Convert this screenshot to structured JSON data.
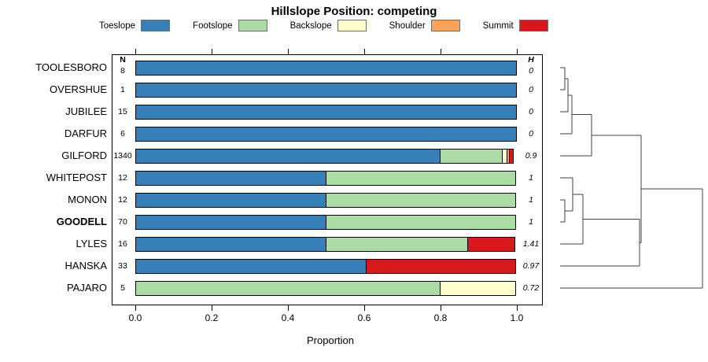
{
  "colors": {
    "Toeslope": "#3580b8",
    "Footslope": "#abdca4",
    "Backslope": "#ffffc9",
    "Shoulder": "#fba25c",
    "Summit": "#d7191c",
    "dendrogram_line": "#404040",
    "bar_border": "#000000"
  },
  "chart_data": {
    "type": "bar",
    "stacked": true,
    "orientation": "horizontal",
    "title": "Hillslope Position: competing",
    "xlabel": "Proportion",
    "xlim": [
      0.0,
      1.0
    ],
    "x_ticks": [
      "0.0",
      "0.2",
      "0.4",
      "0.6",
      "0.8",
      "1.0"
    ],
    "grid": false,
    "legend_position": "top",
    "legend": [
      "Toeslope",
      "Footslope",
      "Backslope",
      "Shoulder",
      "Summit"
    ],
    "n_header": "N",
    "h_header": "H",
    "categories": [
      "TOOLESBORO",
      "OVERSHUE",
      "JUBILEE",
      "DARFUR",
      "GILFORD",
      "WHITEPOST",
      "MONON",
      "GOODELL",
      "LYLES",
      "HANSKA",
      "PAJARO"
    ],
    "emphasized_category": "GOODELL",
    "n_values": [
      "8",
      "1",
      "15",
      "6",
      "1340",
      "12",
      "12",
      "70",
      "16",
      "33",
      "5"
    ],
    "h_values": [
      "0",
      "0",
      "0",
      "0",
      "0.9",
      "1",
      "1",
      "1",
      "1.41",
      "0.97",
      "0.72"
    ],
    "series": [
      {
        "name": "Toeslope",
        "values": [
          1,
          1,
          1,
          1,
          0.8,
          0.5,
          0.5,
          0.5,
          0.5,
          0.606,
          0
        ]
      },
      {
        "name": "Footslope",
        "values": [
          0,
          0,
          0,
          0,
          0.165,
          0.5,
          0.5,
          0.5,
          0.375,
          0,
          0.8
        ]
      },
      {
        "name": "Backslope",
        "values": [
          0,
          0,
          0,
          0,
          0.014,
          0,
          0,
          0,
          0,
          0,
          0.2
        ]
      },
      {
        "name": "Shoulder",
        "values": [
          0,
          0,
          0,
          0,
          0.009,
          0,
          0,
          0,
          0,
          0,
          0
        ]
      },
      {
        "name": "Summit",
        "values": [
          0,
          0,
          0,
          0,
          0.012,
          0,
          0,
          0,
          0.125,
          0.394,
          0
        ]
      }
    ]
  },
  "dendrogram": {
    "side": "right",
    "merges": [
      {
        "id": "m1",
        "a": "TOOLESBORO",
        "b": "OVERSHUE",
        "h": 0.033
      },
      {
        "id": "m2",
        "a": "m1",
        "b": "JUBILEE",
        "h": 0.055
      },
      {
        "id": "m3",
        "a": "m2",
        "b": "DARFUR",
        "h": 0.083
      },
      {
        "id": "m4",
        "a": "m3",
        "b": "GILFORD",
        "h": 0.221
      },
      {
        "id": "m5",
        "a": "MONON",
        "b": "GOODELL",
        "h": 0.033
      },
      {
        "id": "m6",
        "a": "WHITEPOST",
        "b": "m5",
        "h": 0.088
      },
      {
        "id": "m7",
        "a": "m6",
        "b": "LYLES",
        "h": 0.16
      },
      {
        "id": "m8",
        "a": "m7",
        "b": "HANSKA",
        "h": 0.558
      },
      {
        "id": "m9",
        "a": "m4",
        "b": "m8",
        "h": 0.569
      },
      {
        "id": "m10",
        "a": "m9",
        "b": "PAJARO",
        "h": 1.0
      }
    ]
  }
}
